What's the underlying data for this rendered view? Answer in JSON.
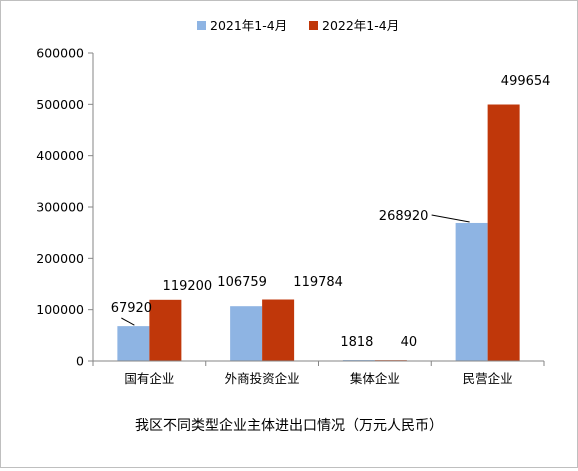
{
  "chart_data": {
    "type": "bar",
    "title": "我区不同类型企业主体进出口情况（万元人民币）",
    "categories": [
      "国有企业",
      "外商投资企业",
      "集体企业",
      "民营企业"
    ],
    "series": [
      {
        "name": "2021年1-4月",
        "values": [
          67920,
          106759,
          1818,
          268920
        ],
        "color": "#8eb4e3"
      },
      {
        "name": "2022年1-4月",
        "values": [
          119200,
          119784,
          40,
          499654
        ],
        "color": "#c0370a"
      }
    ],
    "data_labels": {
      "2021年1-4月": [
        "67920",
        "106759",
        "1818",
        "268920"
      ],
      "2022年1-4月": [
        "119200",
        "119784",
        "40",
        "499654"
      ]
    },
    "ylim": [
      0,
      600000
    ],
    "yticks": [
      "0",
      "100000",
      "200000",
      "300000",
      "400000",
      "500000",
      "600000"
    ],
    "xlabel": "",
    "ylabel": "",
    "grid": false,
    "legend_position": "top",
    "colors": {
      "axis": "#868686",
      "frame": "#bfbfbf"
    }
  }
}
